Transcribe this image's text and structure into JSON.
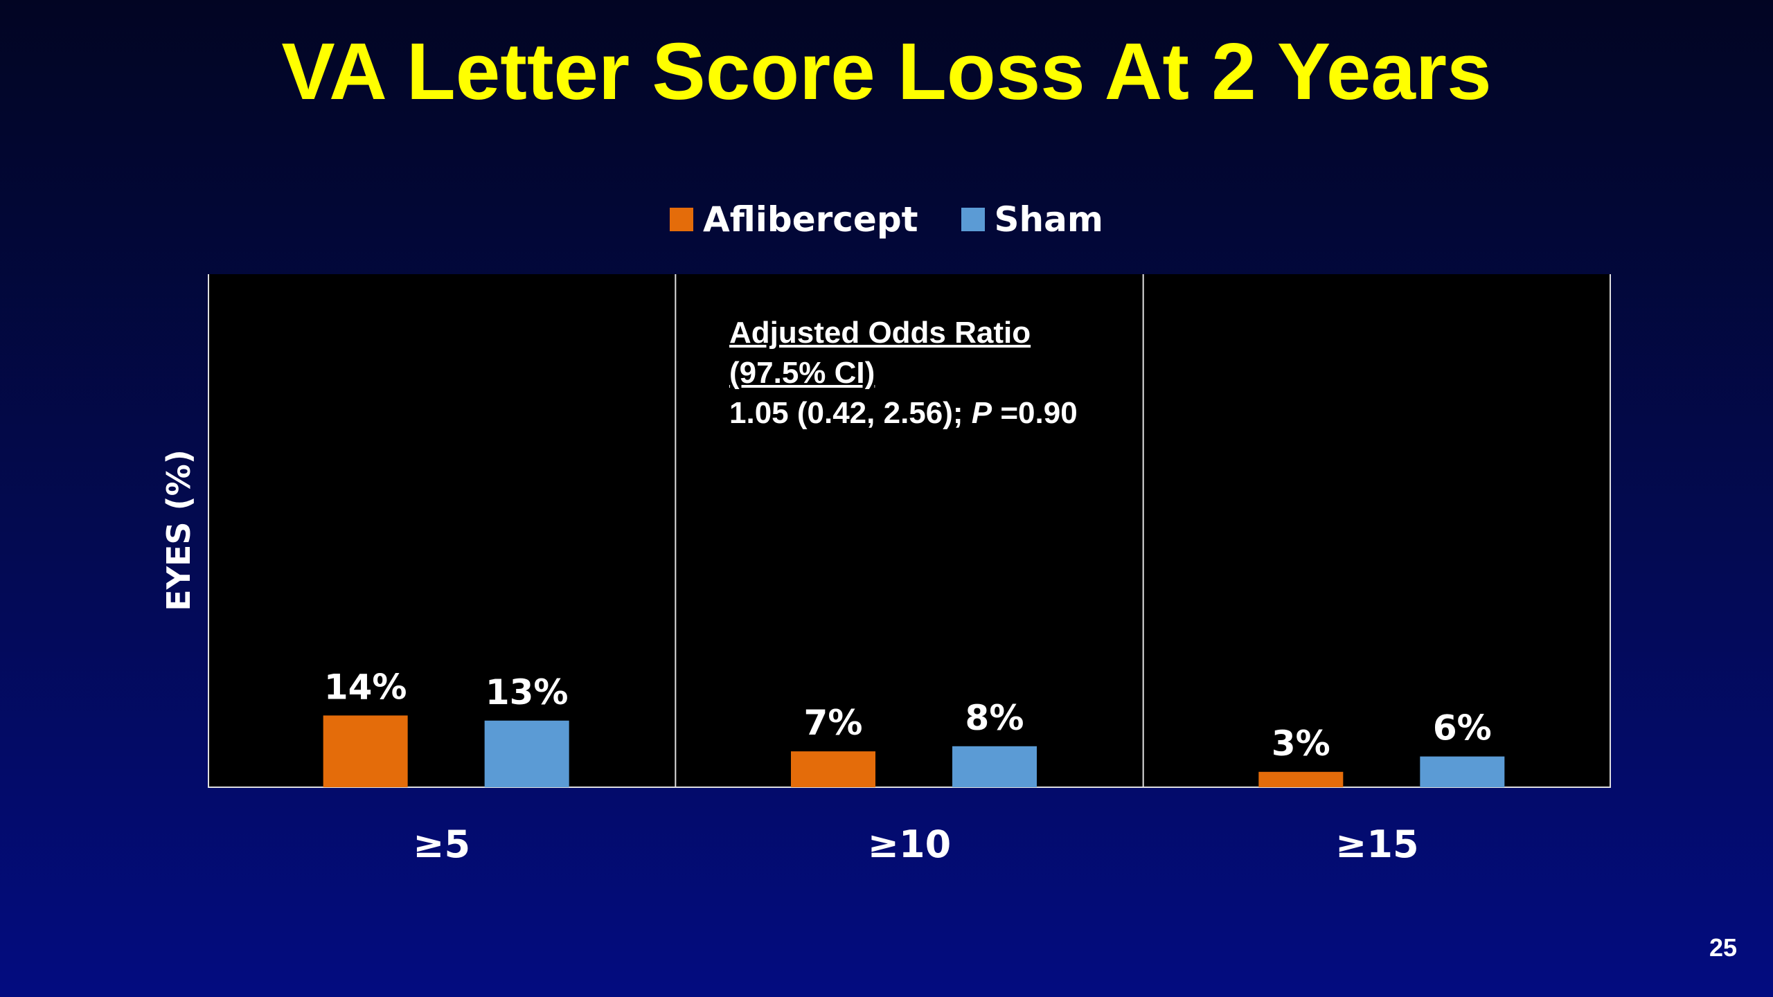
{
  "slide": {
    "title": "VA Letter Score Loss At 2 Years",
    "page_number": "25"
  },
  "annotation": {
    "line1": "Adjusted Odds Ratio",
    "line2": "(97.5% CI)",
    "line3_prefix": "1.05 (0.42, 2.56); ",
    "line3_p": "P",
    "line3_suffix": " =0.90"
  },
  "chart_data": {
    "type": "bar",
    "title": "",
    "xlabel": "",
    "ylabel": "EYES (%)",
    "categories": [
      "≥5",
      "≥10",
      "≥15"
    ],
    "series": [
      {
        "name": "Aflibercept",
        "color": "#e46c0a",
        "values": [
          14,
          7,
          3
        ],
        "labels": [
          "14%",
          "7%",
          "3%"
        ]
      },
      {
        "name": "Sham",
        "color": "#5b9bd5",
        "values": [
          13,
          8,
          6
        ],
        "labels": [
          "13%",
          "8%",
          "6%"
        ]
      }
    ],
    "ylim": [
      0,
      100
    ],
    "grid": false,
    "legend": "top-center"
  }
}
